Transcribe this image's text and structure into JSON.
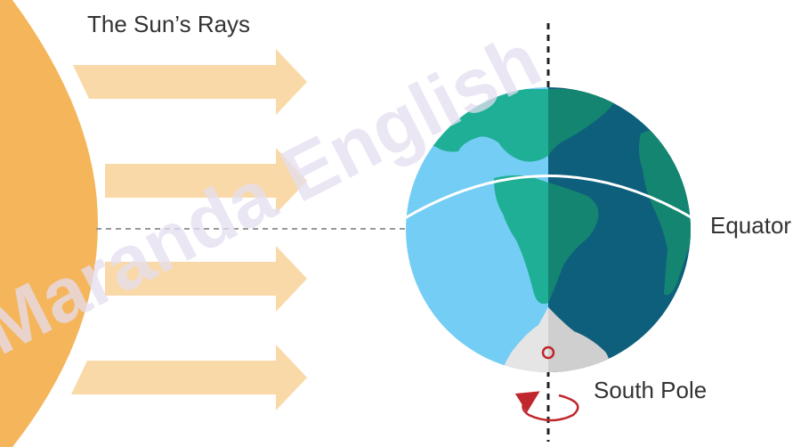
{
  "labels": {
    "sun_rays": "The Sun’s Rays",
    "equator": "Equator",
    "south_pole": "South Pole"
  },
  "watermark": {
    "text": "Maranda English"
  },
  "colors": {
    "sun": "#F5B55A",
    "ray_arrow": "#FAD9A8",
    "ocean_light": "#74CDF4",
    "ocean_dark": "#0E5F7C",
    "land_light": "#1FAF96",
    "land_dark": "#148570",
    "ice_light": "#E5E5E5",
    "ice_dark": "#CFCFCF",
    "equator_line": "#FFFFFF",
    "dashed_line": "#999999",
    "axis": "#222222",
    "rotation_arrow": "#C0272D",
    "watermark": "#E4DDF0"
  }
}
